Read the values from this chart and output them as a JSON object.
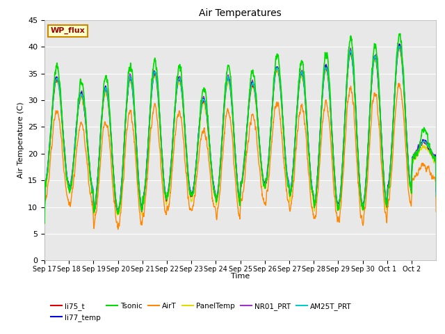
{
  "title": "Air Temperatures",
  "xlabel": "Time",
  "ylabel": "Air Temperature (C)",
  "ylim": [
    0,
    45
  ],
  "yticks": [
    0,
    5,
    10,
    15,
    20,
    25,
    30,
    35,
    40,
    45
  ],
  "date_labels": [
    "Sep 17",
    "Sep 18",
    "Sep 19",
    "Sep 20",
    "Sep 21",
    "Sep 22",
    "Sep 23",
    "Sep 24",
    "Sep 25",
    "Sep 26",
    "Sep 27",
    "Sep 28",
    "Sep 29",
    "Sep 30",
    "Oct 1",
    "Oct 2"
  ],
  "series": {
    "li75_t": {
      "color": "#dd0000",
      "lw": 1.0
    },
    "li77_temp": {
      "color": "#0000dd",
      "lw": 1.0
    },
    "Tsonic": {
      "color": "#00dd00",
      "lw": 1.2
    },
    "AirT": {
      "color": "#ff8800",
      "lw": 1.0
    },
    "PanelTemp": {
      "color": "#dddd00",
      "lw": 1.0
    },
    "NR01_PRT": {
      "color": "#9933cc",
      "lw": 1.0
    },
    "AM25T_PRT": {
      "color": "#00cccc",
      "lw": 1.2
    }
  },
  "annotation_text": "WP_flux",
  "annotation_color": "#990000",
  "annotation_bg": "#ffffcc",
  "annotation_border": "#cc8800",
  "fig_bg": "#ffffff",
  "plot_bg": "#e8e8e8",
  "n_days": 16,
  "pts_per_day": 144,
  "base_min": [
    14,
    13,
    9,
    9,
    11,
    12,
    12,
    11,
    14,
    14,
    12,
    10,
    10,
    10,
    13,
    19
  ],
  "base_max": [
    34,
    31,
    32,
    34,
    35,
    34,
    30,
    34,
    33,
    36,
    35,
    36,
    39,
    38,
    40,
    22
  ],
  "tsonic_extra": 2.5,
  "airt_scale": 0.85
}
